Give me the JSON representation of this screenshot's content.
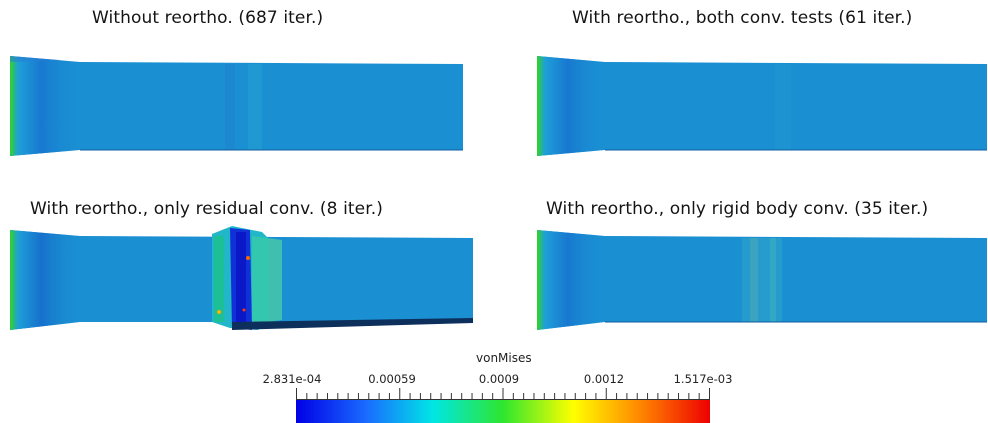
{
  "panels": [
    {
      "title": "Without reortho. (687 iter.)"
    },
    {
      "title": "With reortho., both conv. tests (61 iter.)"
    },
    {
      "title": "With reortho., only residual conv. (8 iter.)"
    },
    {
      "title": "With reortho., only rigid body conv. (35 iter.)"
    }
  ],
  "colorbar": {
    "title": "vonMises",
    "ticks": [
      "2.831e-04",
      "0.00059",
      "0.0009",
      "0.0012",
      "1.517e-03"
    ],
    "colors": [
      "#0000e6",
      "#1a6bff",
      "#00e6e6",
      "#2ee62e",
      "#ffff00",
      "#ff8800",
      "#ee0000"
    ]
  },
  "colors": {
    "mesh_base": "#1a8fd2",
    "mesh_dark": "#1457c4",
    "background": "#ffffff"
  }
}
